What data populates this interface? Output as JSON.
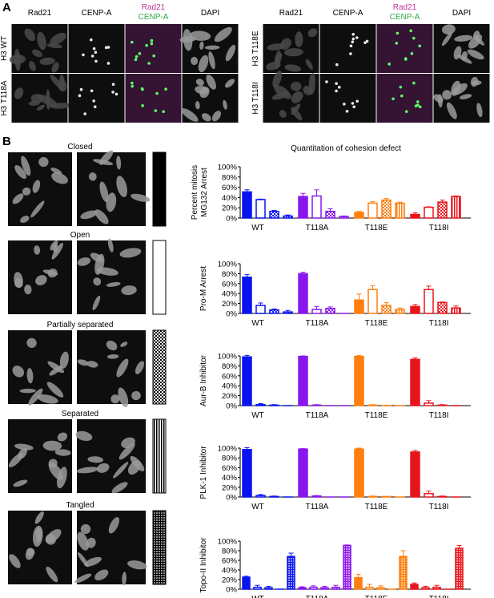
{
  "panel_a": {
    "label": "A",
    "left_columns": [
      "Rad21",
      "CENP-A",
      "Rad21",
      "CENP-A",
      "DAPI"
    ],
    "right_columns": [
      "Rad21",
      "CENP-A",
      "Rad21",
      "CENP-A",
      "DAPI"
    ],
    "left_rows": [
      "H3 WT",
      "H3 T118A"
    ],
    "right_rows": [
      "H3 T118E",
      "H3 T118I"
    ],
    "merge_colors": {
      "rad21": "#c0369b",
      "cenpa": "#2eaa4a"
    }
  },
  "panel_b": {
    "label": "B",
    "phenotypes": [
      {
        "label": "Closed",
        "legend": "solid"
      },
      {
        "label": "Open",
        "legend": "empty"
      },
      {
        "label": "Partially separated",
        "legend": "checker"
      },
      {
        "label": "Separated",
        "legend": "vertical-stripes"
      },
      {
        "label": "Tangled",
        "legend": "grid"
      }
    ],
    "chart_title": "Quantitation of cohesion defect"
  },
  "colors": {
    "WT": "#0a14f0",
    "T118A": "#8a16ee",
    "T118E": "#ff7f0e",
    "T118I": "#e8141c"
  },
  "chart_data": [
    {
      "type": "bar",
      "title": "",
      "ylabel": [
        "Percent mitosis",
        "MG132 Arrest"
      ],
      "yticks": [
        "0%",
        "20%",
        "40%",
        "60%",
        "80%",
        "100%"
      ],
      "ylim": [
        0,
        100
      ],
      "categories": [
        "WT",
        "T118A",
        "T118E",
        "T118I"
      ],
      "series": [
        {
          "name": "Closed",
          "values": [
            51,
            42,
            11,
            7
          ],
          "errors": [
            4,
            6,
            2,
            3
          ]
        },
        {
          "name": "Open",
          "values": [
            36,
            43,
            29,
            21
          ],
          "errors": [
            1,
            12,
            3,
            1
          ]
        },
        {
          "name": "Partially separated",
          "values": [
            13,
            13,
            35,
            31
          ],
          "errors": [
            2,
            5,
            3,
            4
          ]
        },
        {
          "name": "Separated",
          "values": [
            4,
            3,
            29,
            42
          ],
          "errors": [
            2,
            1,
            2,
            1
          ]
        }
      ]
    },
    {
      "type": "bar",
      "title": "",
      "ylabel": [
        "Pro-M Arrest"
      ],
      "yticks": [
        "0%",
        "20%",
        "40%",
        "60%",
        "80%",
        "100%"
      ],
      "ylim": [
        0,
        100
      ],
      "categories": [
        "WT",
        "T118A",
        "T118E",
        "T118I"
      ],
      "series": [
        {
          "name": "Closed",
          "values": [
            73,
            80,
            27,
            14
          ],
          "errors": [
            5,
            3,
            12,
            4
          ]
        },
        {
          "name": "Open",
          "values": [
            16,
            8,
            48,
            48
          ],
          "errors": [
            5,
            6,
            8,
            7
          ]
        },
        {
          "name": "Partially separated",
          "values": [
            7,
            10,
            16,
            22
          ],
          "errors": [
            2,
            3,
            6,
            1
          ]
        },
        {
          "name": "Separated",
          "values": [
            3,
            0,
            8,
            11
          ],
          "errors": [
            3,
            0,
            3,
            4
          ]
        }
      ]
    },
    {
      "type": "bar",
      "title": "",
      "ylabel": [
        "Aur-B Inhibitor"
      ],
      "yticks": [
        "0%",
        "20%",
        "40%",
        "60%",
        "80%",
        "100%"
      ],
      "ylim": [
        0,
        100
      ],
      "categories": [
        "WT",
        "T118A",
        "T118E",
        "T118I"
      ],
      "series": [
        {
          "name": "Closed",
          "values": [
            98,
            99,
            99,
            93
          ],
          "errors": [
            3,
            1,
            2,
            3
          ]
        },
        {
          "name": "Open",
          "values": [
            2,
            1,
            1,
            5
          ],
          "errors": [
            2,
            1,
            1,
            5
          ]
        },
        {
          "name": "Partially separated",
          "values": [
            1,
            0,
            0,
            1
          ],
          "errors": [
            1,
            0,
            1,
            1
          ]
        },
        {
          "name": "Separated",
          "values": [
            0,
            0,
            0,
            0
          ],
          "errors": [
            0,
            0,
            0,
            0
          ]
        }
      ]
    },
    {
      "type": "bar",
      "title": "",
      "ylabel": [
        "PLK-1 Inhibitor"
      ],
      "yticks": [
        "0%",
        "20%",
        "40%",
        "60%",
        "80%",
        "100%"
      ],
      "ylim": [
        0,
        100
      ],
      "categories": [
        "WT",
        "T118A",
        "T118E",
        "T118I"
      ],
      "series": [
        {
          "name": "Closed",
          "values": [
            97,
            98,
            98,
            92
          ],
          "errors": [
            4,
            1,
            2,
            3
          ]
        },
        {
          "name": "Open",
          "values": [
            3,
            2,
            1,
            7
          ],
          "errors": [
            2,
            1,
            1,
            5
          ]
        },
        {
          "name": "Partially separated",
          "values": [
            1,
            0,
            1,
            1
          ],
          "errors": [
            1,
            0,
            0,
            1
          ]
        },
        {
          "name": "Separated",
          "values": [
            0,
            0,
            0,
            0
          ],
          "errors": [
            0,
            0,
            0,
            0
          ]
        }
      ]
    },
    {
      "type": "bar",
      "title": "",
      "ylabel": [
        "Topo-II Inhibitor"
      ],
      "yticks": [
        "0%",
        "20%",
        "40%",
        "60%",
        "80%",
        "100%"
      ],
      "ylim": [
        0,
        100
      ],
      "categories": [
        "WT",
        "T118A",
        "T118E",
        "T118I"
      ],
      "series": [
        {
          "name": "Closed",
          "values": [
            25,
            3,
            24,
            10
          ],
          "errors": [
            2,
            2,
            7,
            3
          ]
        },
        {
          "name": "Open",
          "values": [
            4,
            4,
            4,
            3
          ],
          "errors": [
            4,
            3,
            6,
            3
          ]
        },
        {
          "name": "Partially separated",
          "values": [
            3,
            3,
            3,
            4
          ],
          "errors": [
            3,
            3,
            4,
            4
          ]
        },
        {
          "name": "Separated",
          "values": [
            0,
            4,
            0,
            0
          ],
          "errors": [
            0,
            4,
            0,
            0
          ]
        },
        {
          "name": "Tangled",
          "values": [
            68,
            91,
            68,
            85
          ],
          "errors": [
            7,
            1,
            12,
            6
          ]
        }
      ]
    }
  ]
}
